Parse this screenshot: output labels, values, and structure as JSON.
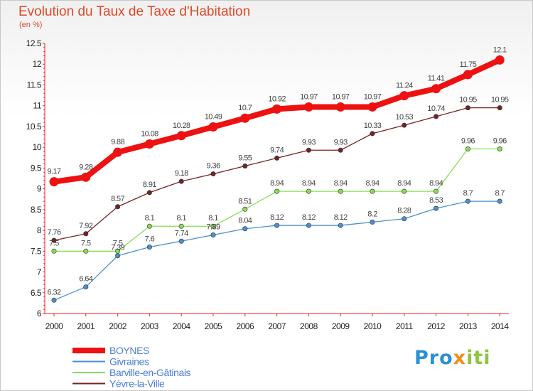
{
  "title": "Evolution du Taux de Taxe d'Habitation",
  "subtitle": "(en %)",
  "logo": {
    "p1": "Pro",
    "p2": "x",
    "p3": "iti"
  },
  "chart_data": {
    "type": "line",
    "x": [
      "2000",
      "2001",
      "2002",
      "2003",
      "2004",
      "2005",
      "2006",
      "2007",
      "2008",
      "2009",
      "2010",
      "2011",
      "2012",
      "2013",
      "2014"
    ],
    "ylim": [
      6,
      12.5
    ],
    "yticks": [
      "6",
      "6.5",
      "7",
      "7.5",
      "8",
      "8.5",
      "9",
      "9.5",
      "10",
      "10.5",
      "11",
      "11.5",
      "12",
      "12.5"
    ],
    "grid": false,
    "legend_position": "bottom-left",
    "series": [
      {
        "name": "BOYNES",
        "color": "#ee1111",
        "values": [
          9.17,
          9.28,
          9.88,
          10.08,
          10.28,
          10.49,
          10.7,
          10.92,
          10.97,
          10.97,
          10.97,
          11.24,
          11.41,
          11.75,
          12.1
        ],
        "labels": [
          "9.17",
          "9.28",
          "9.88",
          "10.08",
          "10.28",
          "10.49",
          "10.7",
          "10.92",
          "10.97",
          "10.97",
          "10.97",
          "11.24",
          "11.41",
          "11.75",
          "12.1"
        ]
      },
      {
        "name": "Givraines",
        "color": "#4a90d0",
        "values": [
          6.32,
          6.64,
          7.39,
          7.6,
          7.74,
          7.89,
          8.04,
          8.12,
          8.12,
          8.12,
          8.2,
          8.28,
          8.53,
          8.7,
          8.7
        ],
        "labels": [
          "6.32",
          "6.64",
          "7.39",
          "7.6",
          "7.74",
          "7.89",
          "8.04",
          "8.12",
          "8.12",
          "8.12",
          "8.2",
          "8.28",
          "8.53",
          "8.7",
          "8.7"
        ]
      },
      {
        "name": "Barville-en-Gâtinais",
        "color": "#88dd55",
        "values": [
          7.5,
          7.5,
          7.5,
          8.1,
          8.1,
          8.1,
          8.51,
          8.94,
          8.94,
          8.94,
          8.94,
          8.94,
          8.94,
          9.96,
          9.96
        ],
        "labels": [
          "7.5",
          "7.5",
          "7.5",
          "8.1",
          "8.1",
          "8.1",
          "8.51",
          "8.94",
          "8.94",
          "8.94",
          "8.94",
          "8.94",
          "8.94",
          "9.96",
          "9.96"
        ]
      },
      {
        "name": "Yèvre-la-Ville",
        "color": "#772222",
        "values": [
          7.76,
          7.92,
          8.57,
          8.91,
          9.18,
          9.36,
          9.55,
          9.74,
          9.93,
          9.93,
          10.33,
          10.53,
          10.74,
          10.95,
          10.95
        ],
        "labels": [
          "7.76",
          "7.92",
          "8.57",
          "8.91",
          "9.18",
          "9.36",
          "9.55",
          "9.74",
          "9.93",
          "9.93",
          "10.33",
          "10.53",
          "10.74",
          "10.95",
          "10.95"
        ]
      }
    ]
  }
}
